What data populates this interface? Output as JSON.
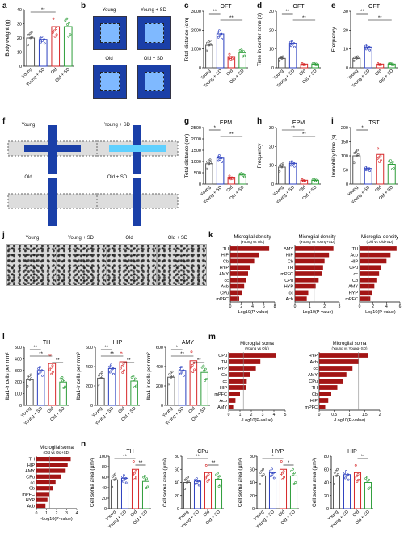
{
  "panel_labels": [
    "a",
    "b",
    "c",
    "d",
    "e",
    "f",
    "g",
    "h",
    "i",
    "j",
    "k",
    "l",
    "m",
    "n"
  ],
  "groups": [
    "Young",
    "Young + SD",
    "Old",
    "Old + SD"
  ],
  "group_colors": [
    "#555555",
    "#2b3fbf",
    "#d62728",
    "#2e9e3a"
  ],
  "arena_labels": {
    "b": [
      "Young",
      "Young + SD",
      "Old",
      "Old + SD"
    ],
    "f": [
      "Young",
      "Young + SD",
      "Old",
      "Old + SD"
    ]
  },
  "micro_labels": [
    "Young",
    "Young + SD",
    "Old",
    "Old + SD"
  ],
  "chart_data": [
    {
      "id": "a",
      "type": "bar",
      "title": "",
      "ylabel": "Body weight (g)",
      "ylim": [
        0,
        40
      ],
      "yticks": [
        0,
        10,
        20,
        30,
        40
      ],
      "categories": [
        "Young",
        "Young + SD",
        "Old",
        "Old + SD"
      ],
      "values": [
        20,
        19,
        28,
        28
      ],
      "sig": [
        {
          "a": 0,
          "b": 2,
          "t": "**"
        }
      ]
    },
    {
      "id": "c",
      "type": "bar",
      "title": "OFT",
      "ylabel": "Total distance (cm)",
      "ylim": [
        0,
        3000
      ],
      "yticks": [
        0,
        1000,
        2000,
        3000
      ],
      "categories": [
        "Young",
        "Young + SD",
        "Old",
        "Old + SD"
      ],
      "values": [
        1200,
        1800,
        600,
        800
      ],
      "sig": [
        {
          "a": 0,
          "b": 1,
          "t": "**"
        },
        {
          "a": 1,
          "b": 3,
          "t": "**"
        }
      ]
    },
    {
      "id": "d",
      "type": "bar",
      "title": "OFT",
      "ylabel": "Time in center zone (s)",
      "ylim": [
        0,
        30
      ],
      "yticks": [
        0,
        10,
        20,
        30
      ],
      "categories": [
        "Young",
        "Young + SD",
        "Old",
        "Old + SD"
      ],
      "values": [
        5,
        13,
        2,
        2
      ],
      "sig": [
        {
          "a": 0,
          "b": 1,
          "t": "**"
        },
        {
          "a": 1,
          "b": 3,
          "t": "**"
        }
      ]
    },
    {
      "id": "e",
      "type": "bar",
      "title": "OFT",
      "ylabel": "Frequency",
      "ylim": [
        0,
        30
      ],
      "yticks": [
        0,
        10,
        20,
        30
      ],
      "categories": [
        "Young",
        "Young + SD",
        "Old",
        "Old + SD"
      ],
      "values": [
        5,
        11,
        2,
        2
      ],
      "sig": [
        {
          "a": 0,
          "b": 1,
          "t": "**"
        },
        {
          "a": 1,
          "b": 3,
          "t": "**"
        }
      ]
    },
    {
      "id": "g",
      "type": "bar",
      "title": "EPM",
      "ylabel": "Total distance (cm)",
      "ylim": [
        0,
        2500
      ],
      "yticks": [
        0,
        500,
        1000,
        1500,
        2000,
        2500
      ],
      "categories": [
        "Young",
        "Young + SD",
        "Old",
        "Old + SD"
      ],
      "values": [
        900,
        1150,
        300,
        400
      ],
      "sig": [
        {
          "a": 0,
          "b": 1,
          "t": "*"
        },
        {
          "a": 1,
          "b": 3,
          "t": "**"
        }
      ]
    },
    {
      "id": "h",
      "type": "bar",
      "title": "EPM",
      "ylabel": "Frequency",
      "ylim": [
        0,
        30
      ],
      "yticks": [
        0,
        10,
        20,
        30
      ],
      "categories": [
        "Young",
        "Young + SD",
        "Old",
        "Old + SD"
      ],
      "values": [
        9,
        11,
        2,
        2
      ],
      "sig": [
        {
          "a": 0,
          "b": 2,
          "t": "**"
        },
        {
          "a": 1,
          "b": 3,
          "t": "**"
        }
      ]
    },
    {
      "id": "i",
      "type": "bar",
      "title": "TST",
      "ylabel": "Immobility time (s)",
      "ylim": [
        0,
        200
      ],
      "yticks": [
        0,
        50,
        100,
        150,
        200
      ],
      "categories": [
        "Young",
        "Young + SD",
        "Old",
        "Old + SD"
      ],
      "values": [
        100,
        55,
        105,
        70
      ],
      "sig": [
        {
          "a": 0,
          "b": 1,
          "t": "*"
        }
      ]
    },
    {
      "id": "l1",
      "type": "bar",
      "title": "TH",
      "ylabel": "Iba1-ir cells per mm²",
      "ylim": [
        0,
        500
      ],
      "yticks": [
        0,
        100,
        200,
        300,
        400,
        500
      ],
      "categories": [
        "Young",
        "Young + SD",
        "Old",
        "Old + SD"
      ],
      "values": [
        220,
        300,
        360,
        200
      ],
      "sig": [
        {
          "a": 0,
          "b": 1,
          "t": "**"
        },
        {
          "a": 0,
          "b": 2,
          "t": "**"
        },
        {
          "a": 2,
          "b": 3,
          "t": "**"
        }
      ]
    },
    {
      "id": "l2",
      "type": "bar",
      "title": "HIP",
      "ylabel": "Iba1-ir cells per mm²",
      "ylim": [
        0,
        600
      ],
      "yticks": [
        0,
        200,
        400,
        600
      ],
      "categories": [
        "Young",
        "Young + SD",
        "Old",
        "Old + SD"
      ],
      "values": [
        280,
        380,
        450,
        250
      ],
      "sig": [
        {
          "a": 0,
          "b": 1,
          "t": "**"
        },
        {
          "a": 0,
          "b": 2,
          "t": "**"
        },
        {
          "a": 2,
          "b": 3,
          "t": "**"
        }
      ]
    },
    {
      "id": "l3",
      "type": "bar",
      "title": "AMY",
      "ylabel": "Iba1-ir cells per mm²",
      "ylim": [
        0,
        600
      ],
      "yticks": [
        0,
        200,
        400,
        600
      ],
      "categories": [
        "Young",
        "Young + SD",
        "Old",
        "Old + SD"
      ],
      "values": [
        290,
        360,
        460,
        340
      ],
      "sig": [
        {
          "a": 0,
          "b": 1,
          "t": "*"
        },
        {
          "a": 0,
          "b": 2,
          "t": "**"
        },
        {
          "a": 2,
          "b": 3,
          "t": "**"
        }
      ]
    },
    {
      "id": "n1",
      "type": "bar",
      "title": "TH",
      "ylabel": "Cell soma area (µm²)",
      "ylim": [
        0,
        100
      ],
      "yticks": [
        0,
        20,
        40,
        60,
        80,
        100
      ],
      "categories": [
        "Young",
        "Young + SD",
        "Old",
        "Old + SD"
      ],
      "values": [
        55,
        58,
        75,
        52
      ],
      "sig": [
        {
          "a": 0,
          "b": 2,
          "t": "**"
        },
        {
          "a": 2,
          "b": 3,
          "t": "**"
        }
      ]
    },
    {
      "id": "n2",
      "type": "bar",
      "title": "CPu",
      "ylabel": "Cell soma area (µm²)",
      "ylim": [
        0,
        80
      ],
      "yticks": [
        0,
        20,
        40,
        60,
        80
      ],
      "categories": [
        "Young",
        "Young + SD",
        "Old",
        "Old + SD"
      ],
      "values": [
        40,
        42,
        55,
        45
      ],
      "sig": [
        {
          "a": 0,
          "b": 2,
          "t": "**"
        },
        {
          "a": 2,
          "b": 3,
          "t": "**"
        }
      ]
    },
    {
      "id": "n3",
      "type": "bar",
      "title": "HYP",
      "ylabel": "Cell soma area (µm²)",
      "ylim": [
        0,
        80
      ],
      "yticks": [
        0,
        20,
        40,
        60,
        80
      ],
      "categories": [
        "Young",
        "Young + SD",
        "Old",
        "Old + SD"
      ],
      "values": [
        50,
        55,
        60,
        50
      ],
      "sig": [
        {
          "a": 0,
          "b": 2,
          "t": "*"
        },
        {
          "a": 2,
          "b": 3,
          "t": "*"
        }
      ]
    },
    {
      "id": "n4",
      "type": "bar",
      "title": "HIP",
      "ylabel": "Cell soma area (µm²)",
      "ylim": [
        0,
        80
      ],
      "yticks": [
        0,
        20,
        40,
        60,
        80
      ],
      "categories": [
        "Young",
        "Young + SD",
        "Old",
        "Old + SD"
      ],
      "values": [
        50,
        52,
        55,
        40
      ],
      "sig": [
        {
          "a": 2,
          "b": 3,
          "t": "**"
        }
      ]
    },
    {
      "id": "k1",
      "type": "hbar",
      "title": "Microglial density",
      "subtitle": "(Young vs Old)",
      "xlabel": "-Log10(P-value)",
      "xlim": [
        0,
        8
      ],
      "xticks": [
        0,
        2,
        4,
        6,
        8
      ],
      "categories": [
        "TH",
        "HIP",
        "Cb",
        "HYP",
        "AMY",
        "cc",
        "Acb",
        "CPu",
        "mPFC"
      ],
      "values": [
        7.0,
        5.2,
        4.3,
        3.6,
        3.2,
        2.9,
        2.5,
        2.1,
        1.6
      ],
      "threshold": 1.3
    },
    {
      "id": "k2",
      "type": "hbar",
      "title": "Microglial density",
      "subtitle": "(Young vs Young+SD)",
      "xlabel": "-Log10(P-value)",
      "xlim": [
        0,
        3
      ],
      "xticks": [
        0,
        1,
        2,
        3
      ],
      "categories": [
        "AMY",
        "HIP",
        "Cb",
        "TH",
        "mPFC",
        "CPu",
        "HYP",
        "cc",
        "Acb"
      ],
      "values": [
        2.6,
        2.3,
        2.0,
        1.9,
        1.8,
        1.6,
        1.4,
        0.9,
        0.8
      ],
      "threshold": 1.3
    },
    {
      "id": "k3",
      "type": "hbar",
      "title": "Microglial density",
      "subtitle": "(Old vs Old+SD)",
      "xlabel": "-Log10(P-value)",
      "xlim": [
        0,
        6
      ],
      "xticks": [
        0,
        2,
        4,
        6
      ],
      "categories": [
        "TH",
        "Acb",
        "HIP",
        "CPu",
        "cc",
        "Cb",
        "AMY",
        "HYP",
        "mPFC"
      ],
      "values": [
        5.5,
        4.6,
        4.0,
        3.2,
        2.9,
        2.5,
        2.2,
        1.9,
        1.6
      ],
      "threshold": 1.3
    },
    {
      "id": "m1",
      "type": "hbar",
      "title": "Microglial soma",
      "subtitle": "(Young vs Old)",
      "xlabel": "-Log10(P-value)",
      "xlim": [
        0,
        5
      ],
      "xticks": [
        0,
        1,
        2,
        3,
        4,
        5
      ],
      "categories": [
        "CPu",
        "TH",
        "HYP",
        "Cb",
        "cc",
        "HIP",
        "mPFC",
        "Acb",
        "AMY"
      ],
      "values": [
        4.2,
        2.8,
        2.4,
        1.9,
        1.6,
        1.5,
        1.0,
        0.6,
        0.4
      ],
      "threshold": 1.3
    },
    {
      "id": "m2",
      "type": "hbar",
      "title": "Microglial soma",
      "subtitle": "(Young vs Young+SD)",
      "xlabel": "-Log10(P-value)",
      "xlim": [
        0,
        2
      ],
      "xticks": [
        0.0,
        0.5,
        1.0,
        1.5,
        2.0
      ],
      "categories": [
        "HYP",
        "Acb",
        "cc",
        "AMY",
        "CPu",
        "TH",
        "Cb",
        "HIP",
        "mPFC"
      ],
      "values": [
        1.6,
        1.3,
        1.1,
        0.9,
        0.8,
        0.6,
        0.4,
        0.3,
        0.2
      ],
      "threshold": 1.3
    },
    {
      "id": "m3",
      "type": "hbar",
      "title": "Microglial soma",
      "subtitle": "(Old vs Old+SD)",
      "xlabel": "-Log10(P-value)",
      "xlim": [
        0,
        4
      ],
      "xticks": [
        0,
        1,
        2,
        3,
        4
      ],
      "categories": [
        "TH",
        "HIP",
        "AMY",
        "CPu",
        "cc",
        "Cb",
        "mPFC",
        "HYP",
        "Acb"
      ],
      "values": [
        3.4,
        3.1,
        2.9,
        2.4,
        1.9,
        1.6,
        1.3,
        1.1,
        0.9
      ],
      "threshold": 1.3
    }
  ]
}
